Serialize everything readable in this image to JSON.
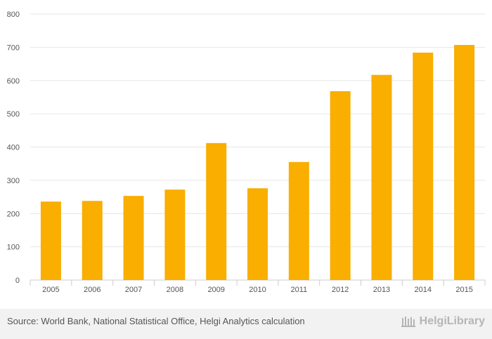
{
  "chart_data": {
    "type": "bar",
    "categories": [
      "2005",
      "2006",
      "2007",
      "2008",
      "2009",
      "2010",
      "2011",
      "2012",
      "2013",
      "2014",
      "2015"
    ],
    "values": [
      236,
      238,
      253,
      272,
      412,
      276,
      355,
      568,
      617,
      684,
      707
    ],
    "ylim": [
      0,
      800
    ],
    "yticks": [
      0,
      100,
      200,
      300,
      400,
      500,
      600,
      700,
      800
    ],
    "title": "",
    "xlabel": "",
    "ylabel": "",
    "bar_color": "#f9ae00",
    "grid": true
  },
  "footer": {
    "source": "Source: World Bank, National Statistical Office, Helgi Analytics calculation",
    "brand": "HelgiLibrary"
  },
  "colors": {
    "footer_bg": "#f2f2f2",
    "grid": "#e6e6e6",
    "axis": "#cccccc"
  }
}
